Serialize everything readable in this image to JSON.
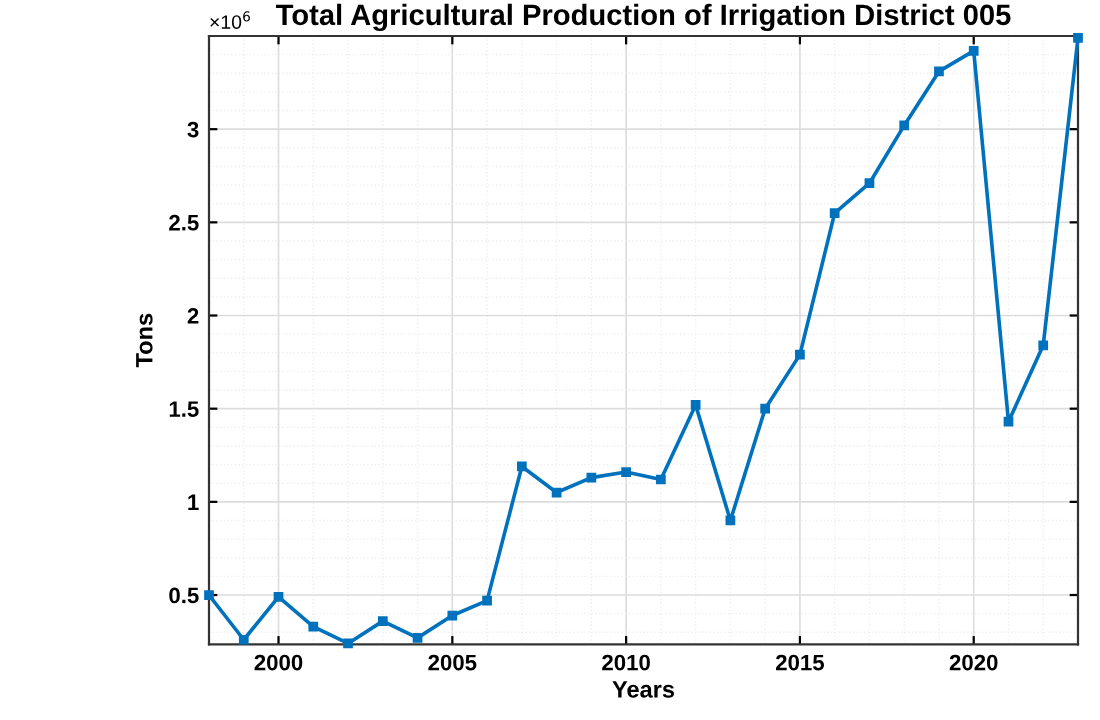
{
  "chart_data": {
    "type": "line",
    "title": "Total Agricultural Production of Irrigation District 005",
    "xlabel": "Years",
    "ylabel": "Tons",
    "annotations": [
      "×10$^{6}$"
    ],
    "x": [
      1998,
      1999,
      2000,
      2001,
      2002,
      2003,
      2004,
      2005,
      2006,
      2007,
      2008,
      2009,
      2010,
      2011,
      2012,
      2013,
      2014,
      2015,
      2016,
      2017,
      2018,
      2019,
      2020,
      2021,
      2022,
      2023
    ],
    "series": [
      {
        "color": "#0072bd",
        "values": [
          0.5,
          0.26,
          0.49,
          0.33,
          0.24,
          0.36,
          0.27,
          0.39,
          0.47,
          1.19,
          1.05,
          1.13,
          1.16,
          1.12,
          1.52,
          0.9,
          1.5,
          1.79,
          2.55,
          2.71,
          3.02,
          3.31,
          3.42,
          1.43,
          1.84,
          3.49
        ]
      }
    ],
    "xlim": [
      1998,
      2023
    ],
    "ylim": [
      0.235,
      3.5
    ],
    "xticks": [
      2000,
      2005,
      2010,
      2015,
      2020
    ],
    "yticks": [
      0.5,
      1,
      1.5,
      2,
      2.5,
      3
    ],
    "grid": true,
    "marker": "square",
    "line_style": "solid"
  }
}
